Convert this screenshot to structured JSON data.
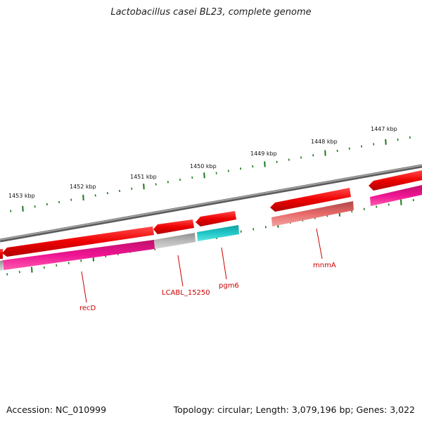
{
  "title": "Lactobacillus casei BL23, complete genome",
  "footer": {
    "accession": "Accession: NC_010999",
    "summary": "Topology: circular; Length: 3,079,196 bp; Genes: 3,022"
  },
  "ruler": {
    "ticks": [
      "1453 kbp",
      "1452 kbp",
      "1451 kbp",
      "1450 kbp",
      "1449 kbp",
      "1448 kbp",
      "1447 kbp"
    ]
  },
  "genes": [
    {
      "label": "recD"
    },
    {
      "label": "LCABL_15250"
    },
    {
      "label": "pgm6"
    },
    {
      "label": "mnmA"
    }
  ],
  "colors": {
    "backbone": "#7a7a7a",
    "cds": "#ee0000",
    "magenta": "#ee1493",
    "grey_feature": "#b8b8b8",
    "cyan_feature": "#20c8c8",
    "salmon_feature": "#e86a6a",
    "tick": "#1a7a1a",
    "label": "#cc0000"
  }
}
